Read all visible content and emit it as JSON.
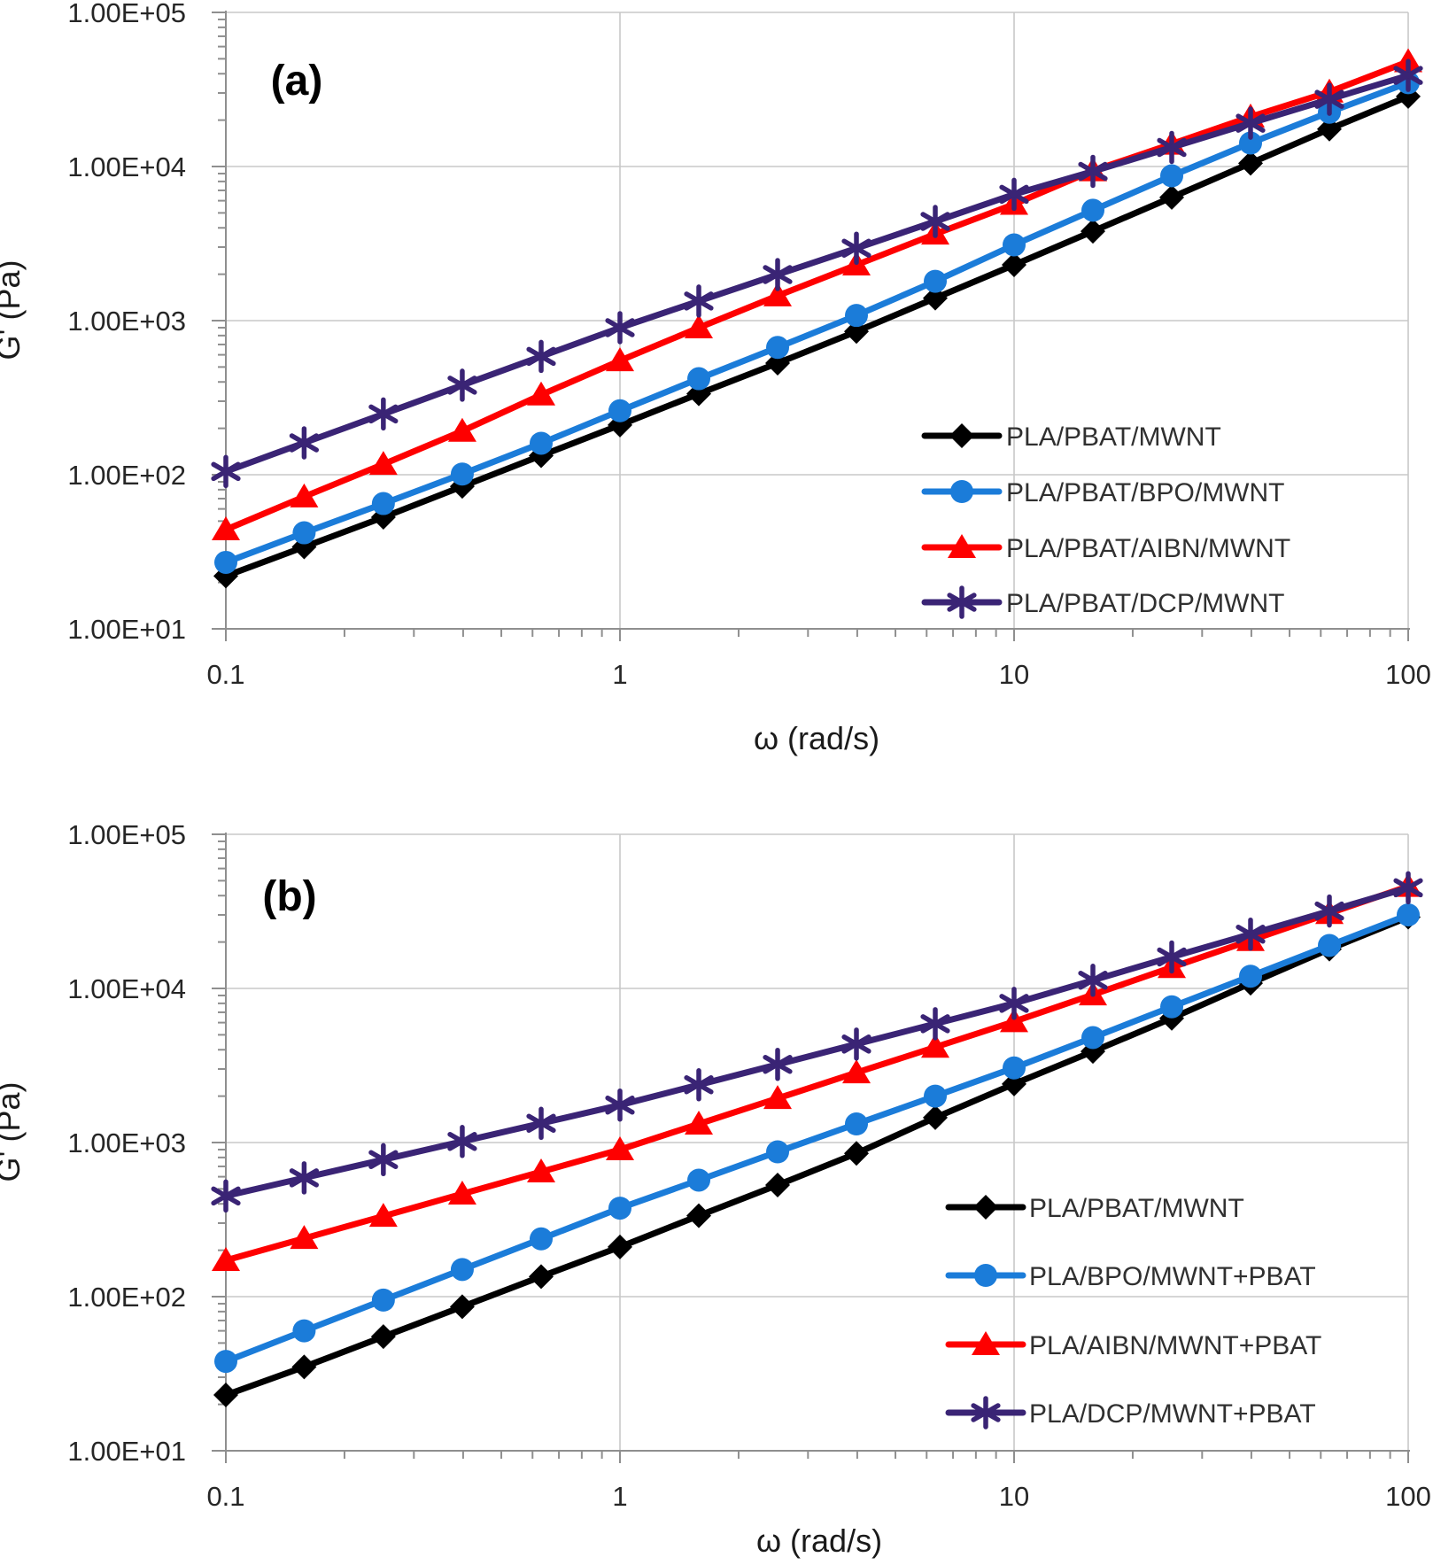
{
  "page": {
    "background": "#ffffff"
  },
  "figure": {
    "x_axis": {
      "label": "ω (rad/s)",
      "scale": "log",
      "min": 0.1,
      "max": 100,
      "tick_values": [
        0.1,
        1,
        10,
        100
      ],
      "tick_labels": [
        "0.1",
        "1",
        "10",
        "100"
      ]
    },
    "y_axis": {
      "label": "G' (Pa)",
      "scale": "log",
      "min": 10,
      "max": 100000,
      "tick_values": [
        100000,
        10000,
        1000,
        100,
        10
      ],
      "tick_labels": [
        "1.00E+05",
        "1.00E+04",
        "1.00E+03",
        "1.00E+02",
        "1.00E+01"
      ]
    },
    "colors": {
      "black": "#000000",
      "blue": "#1B7CD9",
      "red": "#FE0000",
      "purple": "#3A2475",
      "grid": "#C8C8C8",
      "axis": "#8F8F8F",
      "text": "#262626"
    }
  },
  "chart_data": [
    {
      "type": "line",
      "title": "(a)",
      "xlabel": "ω (rad/s)",
      "ylabel": "G' (Pa)",
      "xscale": "log",
      "yscale": "log",
      "xlim": [
        0.1,
        100
      ],
      "ylim": [
        10,
        100000
      ],
      "grid": true,
      "legend_position": "inside lower right",
      "x": [
        0.1,
        0.158,
        0.251,
        0.398,
        0.631,
        1,
        1.585,
        2.512,
        3.981,
        6.31,
        10,
        15.85,
        25.12,
        39.81,
        63.1,
        100
      ],
      "series": [
        {
          "name": "PLA/PBAT/MWNT",
          "color": "#000000",
          "marker": "diamond",
          "values": [
            22,
            34,
            53,
            84,
            133,
            210,
            335,
            530,
            850,
            1400,
            2300,
            3800,
            6300,
            10500,
            17500,
            28500
          ]
        },
        {
          "name": "PLA/PBAT/BPO/MWNT",
          "color": "#1B7CD9",
          "marker": "circle",
          "values": [
            27,
            42,
            65,
            101,
            160,
            260,
            420,
            670,
            1080,
            1800,
            3100,
            5200,
            8700,
            14200,
            22500,
            35000
          ]
        },
        {
          "name": "PLA/PBAT/AIBN/MWNT",
          "color": "#FE0000",
          "marker": "triangle",
          "values": [
            44,
            72,
            117,
            192,
            330,
            550,
            900,
            1450,
            2300,
            3650,
            5700,
            9400,
            14000,
            21000,
            30500,
            48000
          ]
        },
        {
          "name": "PLA/PBAT/DCP/MWNT",
          "color": "#3A2475",
          "marker": "asterisk",
          "values": [
            105,
            161,
            248,
            381,
            586,
            900,
            1340,
            1990,
            2950,
            4400,
            6600,
            9300,
            13300,
            19100,
            27300,
            39000
          ]
        }
      ]
    },
    {
      "type": "line",
      "title": "(b)",
      "xlabel": "ω (rad/s)",
      "ylabel": "G' (Pa)",
      "xscale": "log",
      "yscale": "log",
      "xlim": [
        0.1,
        100
      ],
      "ylim": [
        10,
        100000
      ],
      "grid": true,
      "legend_position": "inside lower right",
      "x": [
        0.1,
        0.158,
        0.251,
        0.398,
        0.631,
        1,
        1.585,
        2.512,
        3.981,
        6.31,
        10,
        15.85,
        25.12,
        39.81,
        63.1,
        100
      ],
      "series": [
        {
          "name": "PLA/PBAT/MWNT",
          "color": "#000000",
          "marker": "diamond",
          "values": [
            23,
            35,
            55,
            86,
            135,
            210,
            335,
            530,
            850,
            1450,
            2400,
            3900,
            6400,
            10800,
            18000,
            29000
          ]
        },
        {
          "name": "PLA/BPO/MWNT+PBAT",
          "color": "#1B7CD9",
          "marker": "circle",
          "values": [
            38,
            60,
            95,
            150,
            237,
            375,
            570,
            870,
            1320,
            2000,
            3050,
            4800,
            7600,
            12000,
            19000,
            30000
          ]
        },
        {
          "name": "PLA/AIBN/MWNT+PBAT",
          "color": "#FE0000",
          "marker": "triangle",
          "values": [
            172,
            239,
            333,
            464,
            646,
            900,
            1320,
            1935,
            2840,
            4160,
            6100,
            9100,
            13700,
            20500,
            30700,
            46000
          ]
        },
        {
          "name": "PLA/DCP/MWNT+PBAT",
          "color": "#3A2475",
          "marker": "asterisk",
          "values": [
            450,
            590,
            775,
            1016,
            1333,
            1750,
            2370,
            3215,
            4355,
            5900,
            8000,
            11300,
            16000,
            22500,
            31800,
            45000
          ]
        }
      ]
    }
  ]
}
